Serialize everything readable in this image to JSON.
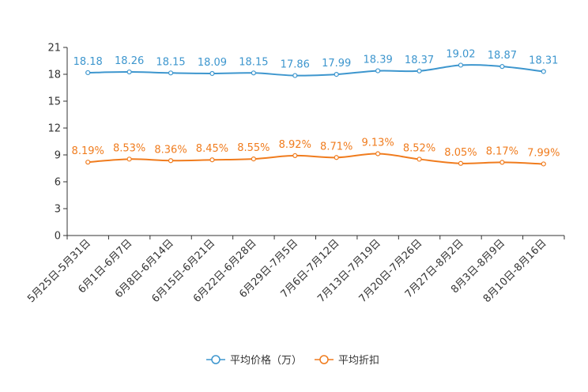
{
  "chart_data": {
    "type": "line",
    "categories": [
      "5月25日-5月31日",
      "6月1日-6月7日",
      "6月8日-6月14日",
      "6月15日-6月21日",
      "6月22日-6月28日",
      "6月29日-7月5日",
      "7月6日-7月12日",
      "7月13日-7月19日",
      "7月20日-7月26日",
      "7月27日-8月2日",
      "8月3日-8月9日",
      "8月10日-8月16日"
    ],
    "ylim": [
      0,
      21
    ],
    "yticks": [
      0,
      3,
      6,
      9,
      12,
      15,
      18,
      21
    ],
    "series": [
      {
        "name": "平均价格（万）",
        "color": "#3d96ce",
        "values": [
          18.18,
          18.26,
          18.15,
          18.09,
          18.15,
          17.86,
          17.99,
          18.39,
          18.37,
          19.02,
          18.87,
          18.31
        ],
        "labels": [
          "18.18",
          "18.26",
          "18.15",
          "18.09",
          "18.15",
          "17.86",
          "17.99",
          "18.39",
          "18.37",
          "19.02",
          "18.87",
          "18.31"
        ]
      },
      {
        "name": "平均折扣",
        "color": "#f07c1e",
        "values": [
          8.19,
          8.53,
          8.36,
          8.45,
          8.55,
          8.92,
          8.71,
          9.13,
          8.52,
          8.05,
          8.17,
          7.99
        ],
        "labels": [
          "8.19%",
          "8.53%",
          "8.36%",
          "8.45%",
          "8.55%",
          "8.92%",
          "8.71%",
          "9.13%",
          "8.52%",
          "8.05%",
          "8.17%",
          "7.99%"
        ]
      }
    ]
  },
  "legend": {
    "items": [
      "平均价格（万）",
      "平均折扣"
    ]
  }
}
